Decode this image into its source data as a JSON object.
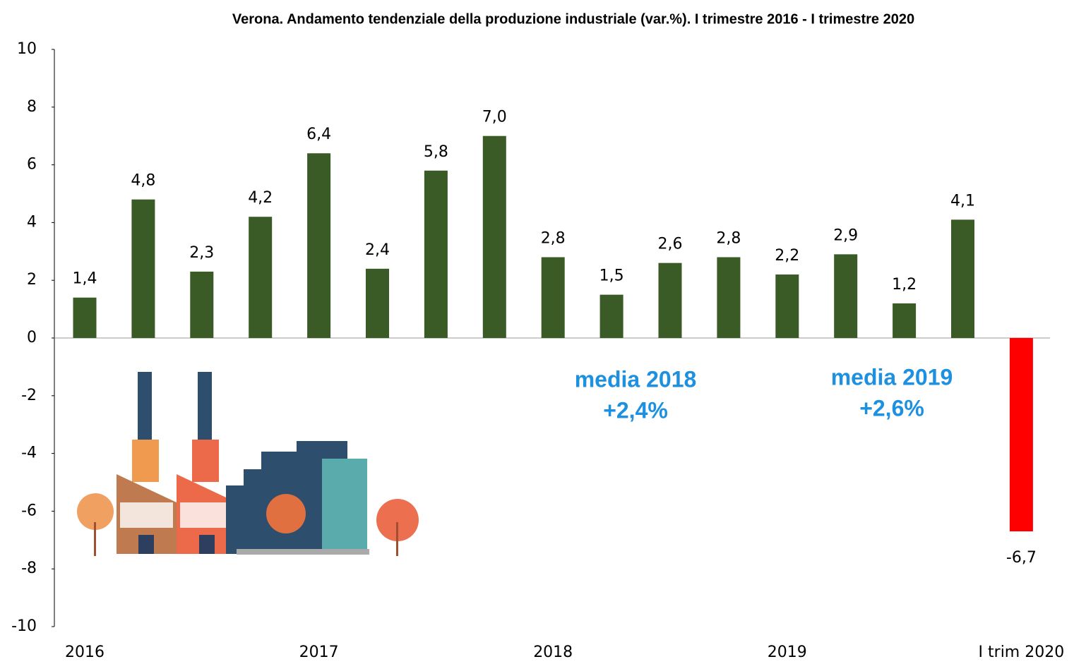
{
  "chart_data": {
    "type": "bar",
    "title": "Verona. Andamento tendenziale della produzione industriale (var.%). I trimestre 2016 - I trimestre 2020",
    "categories": [
      "2016",
      null,
      null,
      null,
      "2017",
      null,
      null,
      null,
      "2018",
      null,
      null,
      null,
      "2019",
      null,
      null,
      null,
      "I trim 2020"
    ],
    "values": [
      1.4,
      4.8,
      2.3,
      4.2,
      6.4,
      2.4,
      5.8,
      7.0,
      2.8,
      1.5,
      2.6,
      2.8,
      2.2,
      2.9,
      1.2,
      4.1,
      -6.7
    ],
    "value_labels": [
      "1,4",
      "4,8",
      "2,3",
      "4,2",
      "6,4",
      "2,4",
      "5,8",
      "7,0",
      "2,8",
      "1,5",
      "2,6",
      "2,8",
      "2,2",
      "2,9",
      "1,2",
      "4,1",
      "-6,7"
    ],
    "colors": [
      "#3a5a26",
      "#3a5a26",
      "#3a5a26",
      "#3a5a26",
      "#3a5a26",
      "#3a5a26",
      "#3a5a26",
      "#3a5a26",
      "#3a5a26",
      "#3a5a26",
      "#3a5a26",
      "#3a5a26",
      "#3a5a26",
      "#3a5a26",
      "#3a5a26",
      "#3a5a26",
      "#ff0000"
    ],
    "ylim": [
      -10,
      10
    ],
    "yticks": [
      -10,
      -8,
      -6,
      -4,
      -2,
      0,
      2,
      4,
      6,
      8,
      10
    ],
    "grid": false,
    "annotations": [
      "media 2018",
      "+2,4%",
      "media 2019",
      "+2,6%"
    ]
  }
}
